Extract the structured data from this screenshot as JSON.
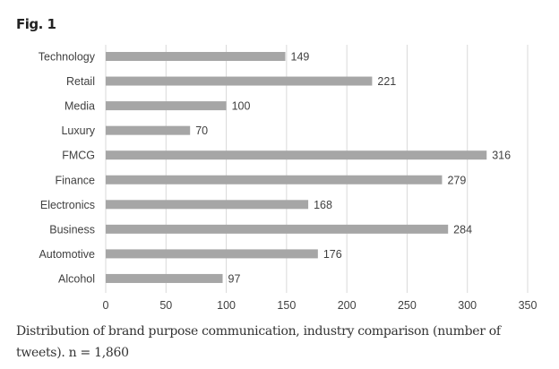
{
  "figure_label": "Fig. 1",
  "caption": "Distribution of brand purpose communication, industry comparison (number of tweets). n = 1,860",
  "chart_data": {
    "type": "bar",
    "orientation": "horizontal",
    "title": "",
    "xlabel": "",
    "ylabel": "",
    "categories": [
      "Technology",
      "Retail",
      "Media",
      "Luxury",
      "FMCG",
      "Finance",
      "Electronics",
      "Business",
      "Automotive",
      "Alcohol"
    ],
    "values": [
      149,
      221,
      100,
      70,
      316,
      279,
      168,
      284,
      176,
      97
    ],
    "xlim": [
      0,
      350
    ],
    "xticks": [
      0,
      50,
      100,
      150,
      200,
      250,
      300,
      350
    ],
    "grid": true,
    "data_labels": true,
    "colors": {
      "bar": "#a6a6a6",
      "grid": "#d9d9d9",
      "text": "#404040"
    }
  }
}
